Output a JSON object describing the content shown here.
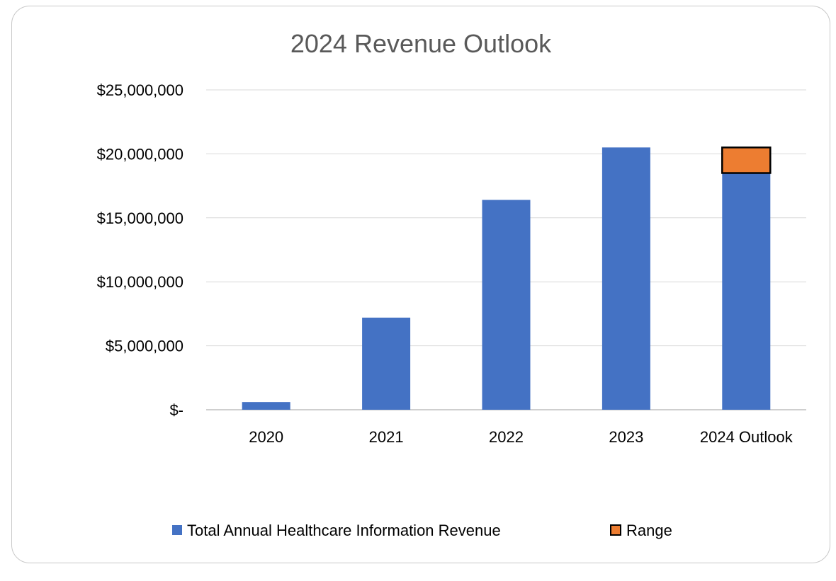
{
  "chart_data": {
    "type": "bar",
    "stacked": true,
    "title": "2024 Revenue Outlook",
    "xlabel": "",
    "ylabel": "",
    "categories": [
      "2020",
      "2021",
      "2022",
      "2023",
      "2024 Outlook"
    ],
    "ylim": [
      0,
      25000000
    ],
    "yticks": [
      0,
      5000000,
      10000000,
      15000000,
      20000000,
      25000000
    ],
    "ytick_labels": [
      "$-",
      "$5,000,000",
      "$10,000,000",
      "$15,000,000",
      "$20,000,000",
      "$25,000,000"
    ],
    "grid": "horizontal",
    "legend_position": "bottom",
    "series": [
      {
        "name": "Total Annual Healthcare Information Revenue",
        "color": "#4472C4",
        "values": [
          600000,
          7200000,
          16400000,
          20500000,
          18500000
        ]
      },
      {
        "name": "Range",
        "color": "#ED7D31",
        "values": [
          0,
          0,
          0,
          0,
          2000000
        ]
      }
    ]
  }
}
